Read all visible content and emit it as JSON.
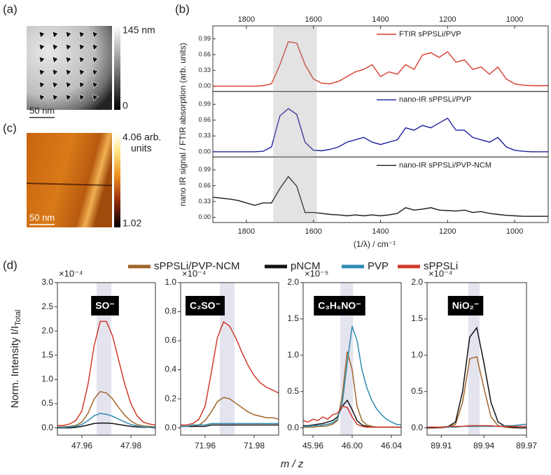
{
  "panel_a": {
    "label": "(a)",
    "colorbar_max": "145 nm",
    "colorbar_min": "0",
    "scale_bar": "50 nm"
  },
  "panel_c": {
    "label": "(c)",
    "colorbar_max": "4.06 arb.",
    "colorbar_unit": "units",
    "colorbar_min": "1.02",
    "scale_bar": "50 nm"
  },
  "panel_d": {
    "label": "(d)",
    "ylabel": "Norm. Intensity I/I",
    "ylabel_sub": "Total",
    "xlabel": "m / z"
  },
  "chart_data": [
    {
      "type": "line",
      "panel_label": "(b)",
      "xlabel": "(1/λ) / cm⁻¹",
      "ylabel": "nano IR signal / FTIR absorption (arb. units)",
      "xlim": [
        1900,
        900
      ],
      "xticks": [
        1800,
        1600,
        1400,
        1200,
        1000
      ],
      "x2ticks": [
        1800,
        1600,
        1400,
        1200,
        1000
      ],
      "highlight": [
        1720,
        1590
      ],
      "x": [
        1900,
        1875,
        1850,
        1825,
        1800,
        1775,
        1750,
        1725,
        1700,
        1675,
        1650,
        1625,
        1600,
        1575,
        1550,
        1525,
        1500,
        1475,
        1450,
        1425,
        1400,
        1375,
        1350,
        1325,
        1300,
        1275,
        1250,
        1225,
        1200,
        1175,
        1150,
        1125,
        1100,
        1075,
        1050,
        1025,
        1000,
        975,
        950,
        925,
        900
      ],
      "subplots": [
        {
          "ylim": [
            -0.11,
            1.26
          ],
          "yticks": [
            {
              "value": 0,
              "label": "0.00"
            },
            0.33,
            0.66,
            0.99
          ],
          "series": [
            {
              "name": "FTIR sPPSLi/PVP",
              "color": "#d73a2a",
              "values": [
                0,
                0,
                0,
                0,
                0,
                0,
                0.01,
                0.05,
                0.45,
                0.93,
                0.9,
                0.45,
                0.15,
                0.06,
                0.05,
                0.1,
                0.2,
                0.3,
                0.35,
                0.45,
                0.2,
                0.3,
                0.25,
                0.45,
                0.35,
                0.65,
                0.7,
                0.6,
                0.72,
                0.5,
                0.55,
                0.35,
                0.4,
                0.25,
                0.4,
                0.15,
                0.05,
                0.02,
                0.01,
                0.01,
                0.01
              ]
            }
          ]
        },
        {
          "ylim": [
            -0.11,
            1.26
          ],
          "yticks": [
            {
              "value": 0,
              "label": "0.00"
            },
            0.33,
            0.66,
            0.99
          ],
          "series": [
            {
              "name": "nano-IR sPPSLi/PVP",
              "color": "#1f1f9e",
              "values": [
                0,
                0,
                0,
                0,
                0,
                0,
                0.01,
                0.1,
                0.75,
                0.9,
                0.78,
                0.2,
                0.03,
                0.02,
                0.05,
                0.1,
                0.2,
                0.25,
                0.3,
                0.2,
                0.15,
                0.2,
                0.25,
                0.5,
                0.45,
                0.55,
                0.5,
                0.6,
                0.7,
                0.45,
                0.45,
                0.3,
                0.25,
                0.2,
                0.3,
                0.1,
                0.03,
                0.01,
                0,
                0,
                0
              ]
            }
          ]
        },
        {
          "ylim": [
            -0.11,
            1.26
          ],
          "yticks": [
            {
              "value": 0,
              "label": "0.00"
            },
            0.33,
            0.66,
            0.99
          ],
          "series": [
            {
              "name": "nano-IR sPPSLi/PVP-NCM",
              "color": "#1a1a1a",
              "values": [
                0.42,
                0.4,
                0.38,
                0.35,
                0.3,
                0.25,
                0.3,
                0.3,
                0.6,
                0.85,
                0.65,
                0.1,
                0.1,
                0.08,
                0.06,
                0.05,
                0.03,
                0.05,
                0.03,
                0.05,
                0.03,
                0.05,
                0.08,
                0.2,
                0.15,
                0.17,
                0.2,
                0.15,
                0.14,
                0.13,
                0.15,
                0.1,
                0.12,
                0.08,
                0.06,
                0.04,
                0.03,
                0.02,
                0.02,
                0.02,
                0.02
              ]
            }
          ]
        }
      ]
    },
    {
      "type": "line",
      "title": "SO⁻",
      "multiplier": "×10⁻⁴",
      "xlim": [
        47.95,
        47.99
      ],
      "xticks": [
        47.96,
        47.98
      ],
      "ylim": [
        -0.15,
        3.0
      ],
      "yticks": [
        {
          "value": 0,
          "label": "0.0"
        },
        0.5,
        {
          "value": 1,
          "label": "1.0"
        },
        1.5,
        {
          "value": 2,
          "label": "2.0"
        },
        2.5,
        {
          "value": 3,
          "label": "3.0"
        }
      ],
      "highlight": [
        47.966,
        47.972
      ],
      "x": [
        47.95,
        47.9525,
        47.955,
        47.9575,
        47.96,
        47.9625,
        47.965,
        47.9675,
        47.97,
        47.9725,
        47.975,
        47.9775,
        47.98,
        47.9825,
        47.985,
        47.9875,
        47.99
      ],
      "series": [
        {
          "name": "sPPSLi/PVP-NCM",
          "color": "#a0662a",
          "values": [
            0.02,
            0.02,
            0.03,
            0.05,
            0.12,
            0.3,
            0.6,
            0.75,
            0.72,
            0.6,
            0.42,
            0.26,
            0.14,
            0.07,
            0.04,
            0.03,
            0.02
          ]
        },
        {
          "name": "pNCM",
          "color": "#111111",
          "values": [
            0,
            0,
            0,
            0.01,
            0.03,
            0.06,
            0.09,
            0.1,
            0.1,
            0.09,
            0.07,
            0.05,
            0.03,
            0.02,
            0.01,
            0.01,
            0
          ]
        },
        {
          "name": "PVP",
          "color": "#2e8bb0",
          "values": [
            0.01,
            0.01,
            0.02,
            0.03,
            0.07,
            0.15,
            0.25,
            0.3,
            0.28,
            0.24,
            0.18,
            0.12,
            0.07,
            0.04,
            0.02,
            0.01,
            0.01
          ]
        },
        {
          "name": "sPPSLi",
          "color": "#d03a2a",
          "values": [
            0.05,
            0.05,
            0.08,
            0.15,
            0.35,
            0.9,
            1.7,
            2.2,
            2.2,
            1.9,
            1.4,
            0.9,
            0.5,
            0.25,
            0.12,
            0.08,
            0.06
          ]
        }
      ]
    },
    {
      "type": "line",
      "title": "C₂SO⁻",
      "multiplier": "×10⁻⁴",
      "xlim": [
        71.95,
        71.99
      ],
      "xticks": [
        71.96,
        71.98
      ],
      "ylim": [
        -0.05,
        1.0
      ],
      "yticks": [
        {
          "value": 0,
          "label": "0.0"
        },
        0.2,
        0.4,
        0.6,
        0.8,
        {
          "value": 1,
          "label": "1.0"
        }
      ],
      "highlight": [
        71.966,
        71.972
      ],
      "x": [
        71.95,
        71.9525,
        71.955,
        71.9575,
        71.96,
        71.9625,
        71.965,
        71.9675,
        71.97,
        71.9725,
        71.975,
        71.9775,
        71.98,
        71.9825,
        71.985,
        71.9875,
        71.99
      ],
      "series": [
        {
          "name": "sPPSLi/PVP-NCM",
          "color": "#a0662a",
          "values": [
            0.01,
            0.01,
            0.01,
            0.02,
            0.05,
            0.11,
            0.18,
            0.21,
            0.2,
            0.17,
            0.14,
            0.11,
            0.09,
            0.08,
            0.07,
            0.07,
            0.06
          ]
        },
        {
          "name": "pNCM",
          "color": "#111111",
          "values": [
            0.01,
            0.01,
            0.01,
            0.01,
            0.01,
            0.02,
            0.02,
            0.02,
            0.02,
            0.02,
            0.02,
            0.02,
            0.02,
            0.02,
            0.02,
            0.02,
            0.02
          ]
        },
        {
          "name": "PVP",
          "color": "#2e8bb0",
          "values": [
            0.01,
            0.01,
            0.02,
            0.02,
            0.02,
            0.03,
            0.03,
            0.03,
            0.03,
            0.03,
            0.03,
            0.03,
            0.03,
            0.03,
            0.03,
            0.03,
            0.03
          ]
        },
        {
          "name": "sPPSLi",
          "color": "#d03a2a",
          "values": [
            0.02,
            0.02,
            0.03,
            0.06,
            0.15,
            0.38,
            0.62,
            0.73,
            0.7,
            0.62,
            0.52,
            0.43,
            0.36,
            0.31,
            0.28,
            0.26,
            0.24
          ]
        }
      ]
    },
    {
      "type": "line",
      "title": "C₃H₆NO⁻",
      "multiplier": "×10⁻⁵",
      "xlim": [
        45.95,
        46.05
      ],
      "xticks": [
        45.96,
        {
          "value": 46,
          "label": "46.00"
        },
        46.04
      ],
      "ylim": [
        -0.1,
        2.0
      ],
      "yticks": [
        {
          "value": 0,
          "label": "0.0"
        },
        0.5,
        {
          "value": 1,
          "label": "1.0"
        },
        1.5,
        {
          "value": 2,
          "label": "2.0"
        }
      ],
      "highlight": [
        45.988,
        46.001
      ],
      "x": [
        45.95,
        45.955,
        45.96,
        45.965,
        45.97,
        45.975,
        45.98,
        45.985,
        45.99,
        45.995,
        46.0,
        46.005,
        46.01,
        46.015,
        46.02,
        46.025,
        46.03,
        46.035,
        46.04,
        46.045,
        46.05
      ],
      "series": [
        {
          "name": "sPPSLi/PVP-NCM",
          "color": "#a0662a",
          "values": [
            0.01,
            0.01,
            0.01,
            0.02,
            0.02,
            0.03,
            0.05,
            0.1,
            0.45,
            1.05,
            0.8,
            0.3,
            0.1,
            0.04,
            0.02,
            0.01,
            0.01,
            0.01,
            0.01,
            0.01,
            0.01
          ]
        },
        {
          "name": "pNCM",
          "color": "#111111",
          "values": [
            0.03,
            0.03,
            0.04,
            0.05,
            0.06,
            0.08,
            0.1,
            0.15,
            0.3,
            0.38,
            0.25,
            0.1,
            0.04,
            0.02,
            0.01,
            0.01,
            0.01,
            0.01,
            0.01,
            0.01,
            0.01
          ]
        },
        {
          "name": "PVP",
          "color": "#2e8bb0",
          "values": [
            0.02,
            0.02,
            0.03,
            0.03,
            0.04,
            0.05,
            0.07,
            0.12,
            0.35,
            0.9,
            1.4,
            1.2,
            0.8,
            0.55,
            0.38,
            0.26,
            0.18,
            0.12,
            0.08,
            0.05,
            0.04
          ]
        },
        {
          "name": "sPPSLi",
          "color": "#d03a2a",
          "values": [
            0.1,
            0.08,
            0.12,
            0.1,
            0.15,
            0.12,
            0.18,
            0.2,
            0.3,
            0.28,
            0.15,
            0.05,
            0.02,
            0.01,
            0.01,
            0.01,
            0.01,
            0.01,
            0.01,
            0.01,
            0.01
          ]
        }
      ]
    },
    {
      "type": "line",
      "title": "NiO₂⁻",
      "multiplier": "×10⁻⁴",
      "xlim": [
        89.9,
        89.97
      ],
      "xticks": [
        89.91,
        89.94,
        89.97
      ],
      "ylim": [
        -0.1,
        2.0
      ],
      "yticks": [
        {
          "value": 0,
          "label": "0.0"
        },
        0.5,
        {
          "value": 1,
          "label": "1.0"
        },
        1.5,
        {
          "value": 2,
          "label": "2.0"
        }
      ],
      "highlight": [
        89.929,
        89.937
      ],
      "x": [
        89.9,
        89.905,
        89.91,
        89.915,
        89.92,
        89.925,
        89.93,
        89.935,
        89.94,
        89.945,
        89.95,
        89.955,
        89.96,
        89.965,
        89.97
      ],
      "series": [
        {
          "name": "sPPSLi/PVP-NCM",
          "color": "#a0662a",
          "values": [
            0,
            0,
            0,
            0.01,
            0.05,
            0.35,
            0.95,
            0.98,
            0.55,
            0.15,
            0.03,
            0.01,
            0,
            0,
            0
          ]
        },
        {
          "name": "pNCM",
          "color": "#111111",
          "values": [
            0,
            0,
            0.01,
            0.02,
            0.08,
            0.5,
            1.25,
            1.38,
            0.9,
            0.35,
            0.08,
            0.02,
            0.01,
            0,
            0
          ]
        },
        {
          "name": "PVP",
          "color": "#2e8bb0",
          "values": [
            0.01,
            0.01,
            0.01,
            0.01,
            0.01,
            0.02,
            0.02,
            0.02,
            0.02,
            0.02,
            0.02,
            0.03,
            0.03,
            0.04,
            0.05
          ]
        },
        {
          "name": "sPPSLi",
          "color": "#d03a2a",
          "values": [
            0.01,
            0.01,
            0.01,
            0.02,
            0.02,
            0.02,
            0.03,
            0.03,
            0.03,
            0.03,
            0.02,
            0.02,
            0.02,
            0.02,
            0.02
          ]
        }
      ]
    }
  ]
}
